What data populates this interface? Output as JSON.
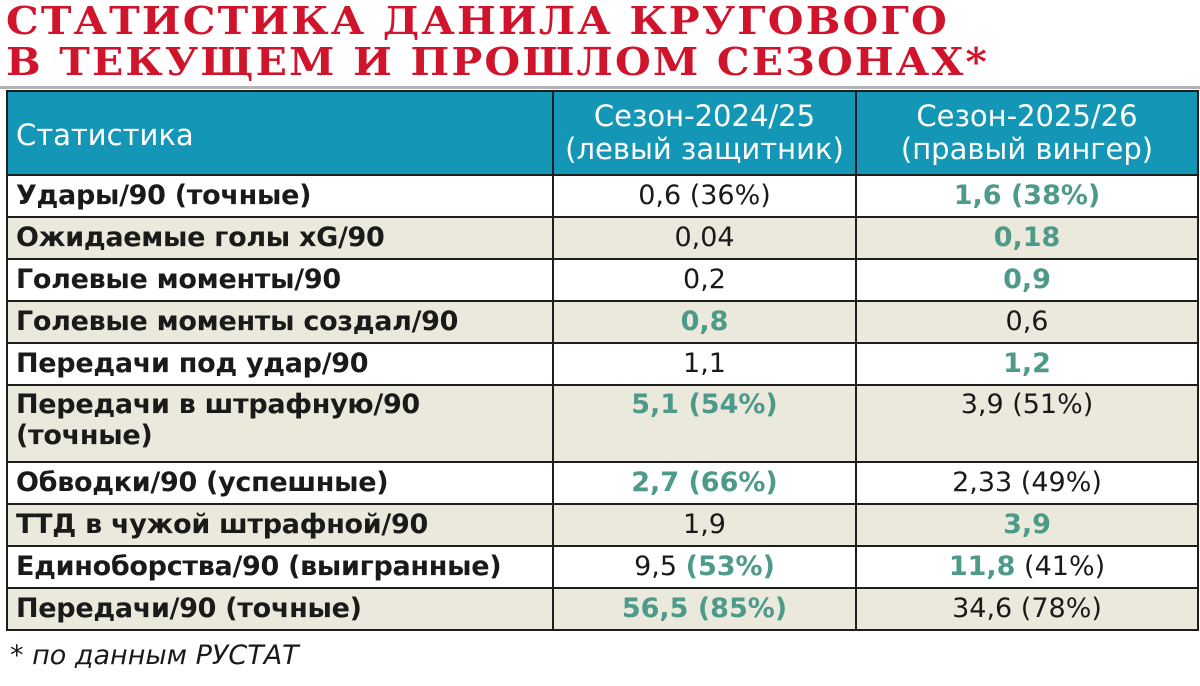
{
  "title": {
    "line1": "Статистика Данила Кругового",
    "line2": "в текущем и прошлом сезонах*"
  },
  "colors": {
    "title_red": "#d0142c",
    "header_blue": "#1497b7",
    "highlight_green": "#4e9a8a",
    "row_alt": "#ebe9dc"
  },
  "table": {
    "headers": {
      "stat": "Статистика",
      "season1_line1": "Сезон-2024/25",
      "season1_line2": "(левый защитник)",
      "season2_line1": "Сезон-2025/26",
      "season2_line2": "(правый вингер)"
    },
    "rows": [
      {
        "label": "Удары/90 (точные)",
        "s1": {
          "main": "0,6 (36%)",
          "main_hl": false,
          "extra": "",
          "extra_hl": false
        },
        "s2": {
          "main": "1,6 (38%)",
          "main_hl": true,
          "extra": "",
          "extra_hl": false
        }
      },
      {
        "label": "Ожидаемые голы xG/90",
        "s1": {
          "main": "0,04",
          "main_hl": false,
          "extra": "",
          "extra_hl": false
        },
        "s2": {
          "main": "0,18",
          "main_hl": true,
          "extra": "",
          "extra_hl": false
        }
      },
      {
        "label": "Голевые моменты/90",
        "s1": {
          "main": "0,2",
          "main_hl": false,
          "extra": "",
          "extra_hl": false
        },
        "s2": {
          "main": "0,9",
          "main_hl": true,
          "extra": "",
          "extra_hl": false
        }
      },
      {
        "label": "Голевые моменты создал/90",
        "s1": {
          "main": "0,8",
          "main_hl": true,
          "extra": "",
          "extra_hl": false
        },
        "s2": {
          "main": "0,6",
          "main_hl": false,
          "extra": "",
          "extra_hl": false
        }
      },
      {
        "label": "Передачи под удар/90",
        "s1": {
          "main": "1,1",
          "main_hl": false,
          "extra": "",
          "extra_hl": false
        },
        "s2": {
          "main": "1,2",
          "main_hl": true,
          "extra": "",
          "extra_hl": false
        }
      },
      {
        "label_line1": "Передачи в штрафную/90",
        "label_line2": "(точные)",
        "s1": {
          "main": "5,1 (54%)",
          "main_hl": true,
          "extra": "",
          "extra_hl": false
        },
        "s2": {
          "main": "3,9 (51%)",
          "main_hl": false,
          "extra": "",
          "extra_hl": false
        }
      },
      {
        "label": "Обводки/90 (успешные)",
        "s1": {
          "main": "2,7 (66%)",
          "main_hl": true,
          "extra": "",
          "extra_hl": false
        },
        "s2": {
          "main": "2,33 (49%)",
          "main_hl": false,
          "extra": "",
          "extra_hl": false
        }
      },
      {
        "label": "ТТД в чужой штрафной/90",
        "s1": {
          "main": "1,9",
          "main_hl": false,
          "extra": "",
          "extra_hl": false
        },
        "s2": {
          "main": "3,9",
          "main_hl": true,
          "extra": "",
          "extra_hl": false
        }
      },
      {
        "label": "Единоборства/90 (выигранные)",
        "s1": {
          "main": "9,5 ",
          "main_hl": false,
          "extra": "(53%)",
          "extra_hl": true
        },
        "s2": {
          "main": "11,8",
          "main_hl": true,
          "extra": " (41%)",
          "extra_hl": false
        }
      },
      {
        "label": "Передачи/90 (точные)",
        "s1": {
          "main": "56,5 (85%)",
          "main_hl": true,
          "extra": "",
          "extra_hl": false
        },
        "s2": {
          "main": "34,6 (78%)",
          "main_hl": false,
          "extra": "",
          "extra_hl": false
        }
      }
    ]
  },
  "footnote": "* по данным РУСТАТ"
}
